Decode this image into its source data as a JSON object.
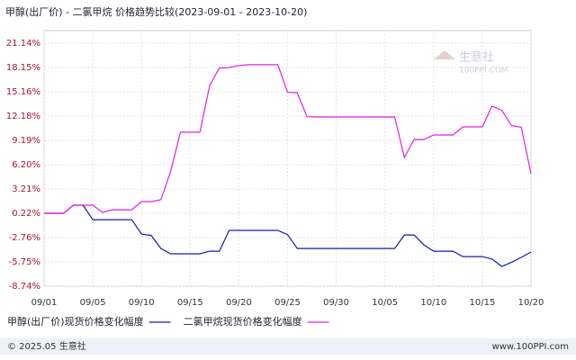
{
  "chart_data": {
    "type": "line",
    "title": "甲醇(出厂价) - 二氯甲烷 价格趋势比较(2023-09-01 - 2023-10-20)",
    "categories": [
      "09/01",
      null,
      null,
      null,
      null,
      "09/05",
      null,
      null,
      null,
      null,
      "09/10",
      null,
      null,
      null,
      null,
      "09/15",
      null,
      null,
      null,
      null,
      "09/20",
      null,
      null,
      null,
      null,
      "09/25",
      null,
      null,
      null,
      null,
      "09/30",
      null,
      null,
      null,
      null,
      "10/05",
      null,
      null,
      null,
      null,
      "10/10",
      null,
      null,
      null,
      null,
      "10/15",
      null,
      null,
      null,
      null,
      "10/20"
    ],
    "series": [
      {
        "name": "甲醇(出厂价)现货价格变化幅度",
        "color": "#1a1aaa",
        "values": [
          0.22,
          0.22,
          0.22,
          1.22,
          1.22,
          -0.56,
          -0.56,
          -0.56,
          -0.56,
          -0.56,
          -2.33,
          -2.5,
          -4.1,
          -4.76,
          -4.76,
          -4.76,
          -4.76,
          -4.43,
          -4.43,
          -1.88,
          -1.88,
          -1.88,
          -1.88,
          -1.88,
          -1.88,
          -2.4,
          -4.1,
          -4.1,
          -4.1,
          -4.1,
          -4.1,
          -4.1,
          -4.1,
          -4.1,
          -4.1,
          -4.1,
          -4.1,
          -2.44,
          -2.44,
          -3.66,
          -4.43,
          -4.43,
          -4.43,
          -5.1,
          -5.1,
          -5.1,
          -5.4,
          -6.3,
          -5.8,
          -5.2,
          -4.54
        ]
      },
      {
        "name": "二氯甲烷现货价格变化幅度",
        "color": "#e020e0",
        "values": [
          0.22,
          0.22,
          0.22,
          1.22,
          1.22,
          1.22,
          0.33,
          0.66,
          0.66,
          0.66,
          1.66,
          1.66,
          1.9,
          5.4,
          10.2,
          10.2,
          10.2,
          15.9,
          18.1,
          18.15,
          18.4,
          18.5,
          18.5,
          18.5,
          18.5,
          15.1,
          15.05,
          12.1,
          12.06,
          12.06,
          12.06,
          12.06,
          12.06,
          12.06,
          12.06,
          12.06,
          12.06,
          7.1,
          9.3,
          9.3,
          9.85,
          9.85,
          9.85,
          10.85,
          10.85,
          10.85,
          13.4,
          12.9,
          11.0,
          10.8,
          5.09
        ]
      }
    ],
    "ylim": [
      -8.74,
      21.14
    ],
    "yticks": [
      {
        "value": -8.74,
        "label": "-8.74%"
      },
      {
        "value": -5.75,
        "label": "-5.75%"
      },
      {
        "value": -2.76,
        "label": "-2.76%"
      },
      {
        "value": 0.22,
        "label": "0.22%"
      },
      {
        "value": 3.21,
        "label": "3.21%"
      },
      {
        "value": 6.2,
        "label": "6.20%"
      },
      {
        "value": 9.19,
        "label": "9.19%"
      },
      {
        "value": 12.18,
        "label": "12.18%"
      },
      {
        "value": 15.16,
        "label": "15.16%"
      },
      {
        "value": 18.15,
        "label": "18.15%"
      },
      {
        "value": 21.14,
        "label": "21.14%"
      }
    ],
    "grid": true,
    "watermark": [
      "生意社",
      "100PPI.COM"
    ],
    "footer": {
      "left": "© 2025.05 生意社",
      "right": "www.100PPI.com"
    }
  }
}
